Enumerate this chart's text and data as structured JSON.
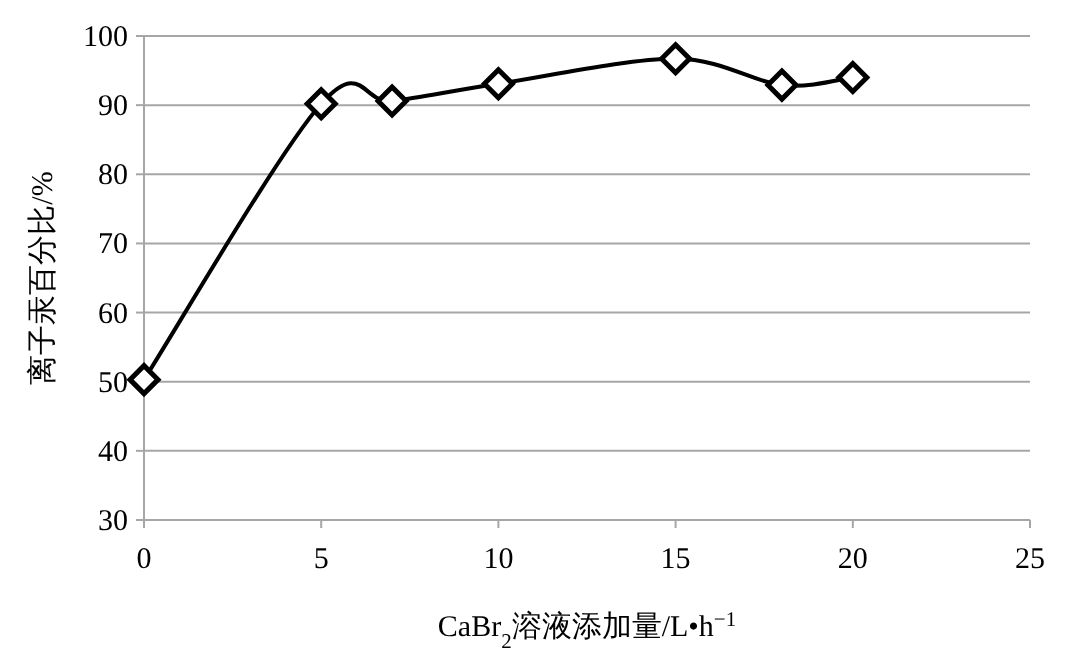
{
  "chart_data": {
    "type": "line",
    "xlabel": "CaBr$_{2}$溶液添加量/L•h$^{−1}$",
    "ylabel": "离子汞百分比/%",
    "x": [
      0,
      5,
      7,
      10,
      15,
      18,
      20
    ],
    "series": [
      {
        "color": "#000000",
        "values": [
          50.3,
          90.2,
          90.6,
          93.1,
          96.7,
          92.9,
          94.0
        ]
      }
    ],
    "xlim": [
      0,
      25
    ],
    "ylim": [
      30,
      100
    ],
    "xticks": [
      0,
      5,
      10,
      15,
      20,
      25
    ],
    "yticks": [
      30,
      40,
      50,
      60,
      70,
      80,
      90,
      100
    ],
    "grid": "y",
    "marker": "diamond",
    "line_style": "solid"
  }
}
